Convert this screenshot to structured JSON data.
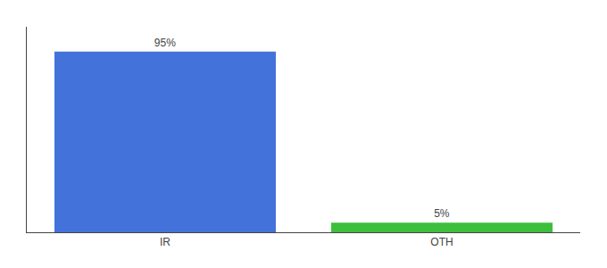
{
  "chart_data": {
    "type": "bar",
    "categories": [
      "IR",
      "OTH"
    ],
    "values": [
      95,
      5
    ],
    "value_labels": [
      "95%",
      "5%"
    ],
    "colors": [
      "#4472db",
      "#3dbf3d"
    ],
    "data_labels": true,
    "ylim": [
      0,
      108
    ],
    "tick_labels": "x",
    "grid": false
  }
}
